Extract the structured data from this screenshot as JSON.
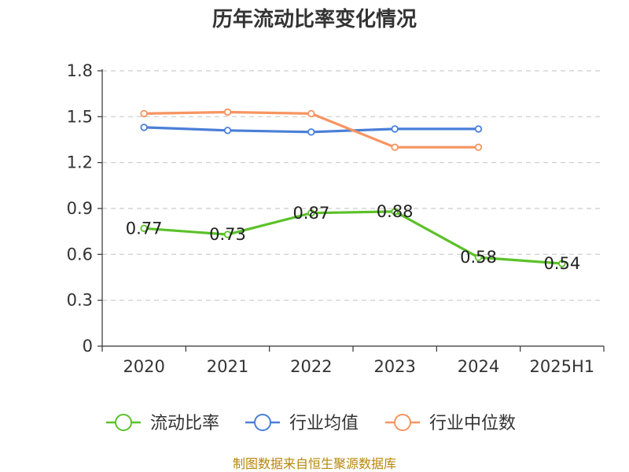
{
  "chart_data": {
    "type": "line",
    "title": "历年流动比率变化情况",
    "categories": [
      "2020",
      "2021",
      "2022",
      "2023",
      "2024",
      "2025H1"
    ],
    "y_ticks": [
      "0",
      "0.3",
      "0.6",
      "0.9",
      "1.2",
      "1.5",
      "1.8"
    ],
    "ylim": [
      0,
      1.8
    ],
    "grid": true,
    "legend_position": "bottom",
    "series": [
      {
        "name": "流动比率",
        "color": "#5cc12a",
        "values": [
          0.77,
          0.73,
          0.87,
          0.88,
          0.58,
          0.54
        ],
        "labels": [
          "0.77",
          "0.73",
          "0.87",
          "0.88",
          "0.58",
          "0.54"
        ]
      },
      {
        "name": "行业均值",
        "color": "#4a7fd8",
        "values": [
          1.43,
          1.41,
          1.4,
          1.42,
          1.42,
          null
        ]
      },
      {
        "name": "行业中位数",
        "color": "#f79460",
        "values": [
          1.52,
          1.53,
          1.52,
          1.3,
          1.3,
          null
        ]
      }
    ],
    "source": "制图数据来自恒生聚源数据库"
  }
}
